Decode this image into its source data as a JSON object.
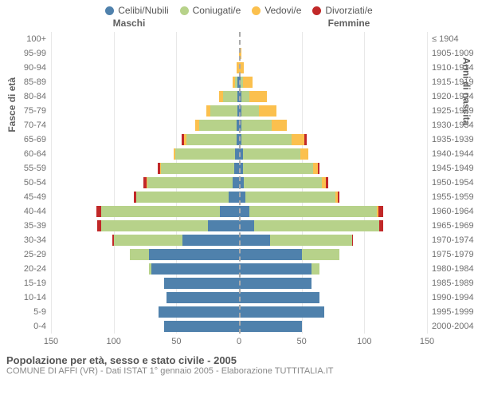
{
  "chart": {
    "type": "population-pyramid",
    "colors": {
      "celibi": "#4f81ac",
      "coniugati": "#b7d28a",
      "vedovi": "#fbc04e",
      "divorziati": "#c12828",
      "grid": "#e8e8e8",
      "center": "#aaaaaa",
      "text": "#707070",
      "bg": "#ffffff"
    },
    "legend": [
      {
        "key": "celibi",
        "label": "Celibi/Nubili"
      },
      {
        "key": "coniugati",
        "label": "Coniugati/e"
      },
      {
        "key": "vedovi",
        "label": "Vedovi/e"
      },
      {
        "key": "divorziati",
        "label": "Divorziati/e"
      }
    ],
    "header_m": "Maschi",
    "header_f": "Femmine",
    "y_title_left": "Fasce di età",
    "y_title_right": "Anni di nascita",
    "x_axis": {
      "min": -150,
      "max": 150,
      "ticks": [
        -150,
        -100,
        -50,
        0,
        50,
        100,
        150
      ],
      "tick_labels": [
        "150",
        "100",
        "50",
        "0",
        "50",
        "100",
        "150"
      ]
    },
    "rows": [
      {
        "age": "100+",
        "birth": "≤ 1904",
        "m": {
          "c": 0,
          "con": 0,
          "v": 0,
          "d": 0
        },
        "f": {
          "c": 0,
          "con": 0,
          "v": 0,
          "d": 0
        }
      },
      {
        "age": "95-99",
        "birth": "1905-1909",
        "m": {
          "c": 0,
          "con": 0,
          "v": 0,
          "d": 0
        },
        "f": {
          "c": 0,
          "con": 0,
          "v": 2,
          "d": 0
        }
      },
      {
        "age": "90-94",
        "birth": "1910-1914",
        "m": {
          "c": 0,
          "con": 0,
          "v": 2,
          "d": 0
        },
        "f": {
          "c": 0,
          "con": 0,
          "v": 4,
          "d": 0
        }
      },
      {
        "age": "85-89",
        "birth": "1915-1919",
        "m": {
          "c": 1,
          "con": 2,
          "v": 2,
          "d": 0
        },
        "f": {
          "c": 1,
          "con": 2,
          "v": 8,
          "d": 0
        }
      },
      {
        "age": "80-84",
        "birth": "1920-1924",
        "m": {
          "c": 1,
          "con": 12,
          "v": 3,
          "d": 0
        },
        "f": {
          "c": 2,
          "con": 6,
          "v": 14,
          "d": 0
        }
      },
      {
        "age": "75-79",
        "birth": "1925-1929",
        "m": {
          "c": 1,
          "con": 22,
          "v": 3,
          "d": 0
        },
        "f": {
          "c": 2,
          "con": 14,
          "v": 14,
          "d": 0
        }
      },
      {
        "age": "70-74",
        "birth": "1930-1934",
        "m": {
          "c": 2,
          "con": 30,
          "v": 3,
          "d": 0
        },
        "f": {
          "c": 2,
          "con": 24,
          "v": 12,
          "d": 0
        }
      },
      {
        "age": "65-69",
        "birth": "1935-1939",
        "m": {
          "c": 2,
          "con": 40,
          "v": 2,
          "d": 2
        },
        "f": {
          "c": 2,
          "con": 40,
          "v": 10,
          "d": 2
        }
      },
      {
        "age": "60-64",
        "birth": "1940-1944",
        "m": {
          "c": 3,
          "con": 48,
          "v": 1,
          "d": 0
        },
        "f": {
          "c": 3,
          "con": 46,
          "v": 6,
          "d": 0
        }
      },
      {
        "age": "55-59",
        "birth": "1945-1949",
        "m": {
          "c": 4,
          "con": 58,
          "v": 1,
          "d": 2
        },
        "f": {
          "c": 3,
          "con": 56,
          "v": 4,
          "d": 1
        }
      },
      {
        "age": "50-54",
        "birth": "1950-1954",
        "m": {
          "c": 5,
          "con": 68,
          "v": 1,
          "d": 2
        },
        "f": {
          "c": 4,
          "con": 62,
          "v": 3,
          "d": 2
        }
      },
      {
        "age": "45-49",
        "birth": "1955-1959",
        "m": {
          "c": 8,
          "con": 74,
          "v": 0,
          "d": 2
        },
        "f": {
          "c": 5,
          "con": 72,
          "v": 2,
          "d": 1
        }
      },
      {
        "age": "40-44",
        "birth": "1960-1964",
        "m": {
          "c": 15,
          "con": 95,
          "v": 0,
          "d": 4
        },
        "f": {
          "c": 8,
          "con": 102,
          "v": 1,
          "d": 4
        }
      },
      {
        "age": "35-39",
        "birth": "1965-1969",
        "m": {
          "c": 25,
          "con": 85,
          "v": 0,
          "d": 3
        },
        "f": {
          "c": 12,
          "con": 100,
          "v": 0,
          "d": 3
        }
      },
      {
        "age": "30-34",
        "birth": "1970-1974",
        "m": {
          "c": 45,
          "con": 55,
          "v": 0,
          "d": 1
        },
        "f": {
          "c": 25,
          "con": 65,
          "v": 0,
          "d": 1
        }
      },
      {
        "age": "25-29",
        "birth": "1975-1979",
        "m": {
          "c": 72,
          "con": 15,
          "v": 0,
          "d": 0
        },
        "f": {
          "c": 50,
          "con": 30,
          "v": 0,
          "d": 0
        }
      },
      {
        "age": "20-24",
        "birth": "1980-1984",
        "m": {
          "c": 70,
          "con": 2,
          "v": 0,
          "d": 0
        },
        "f": {
          "c": 58,
          "con": 6,
          "v": 0,
          "d": 0
        }
      },
      {
        "age": "15-19",
        "birth": "1985-1989",
        "m": {
          "c": 60,
          "con": 0,
          "v": 0,
          "d": 0
        },
        "f": {
          "c": 58,
          "con": 0,
          "v": 0,
          "d": 0
        }
      },
      {
        "age": "10-14",
        "birth": "1990-1994",
        "m": {
          "c": 58,
          "con": 0,
          "v": 0,
          "d": 0
        },
        "f": {
          "c": 64,
          "con": 0,
          "v": 0,
          "d": 0
        }
      },
      {
        "age": "5-9",
        "birth": "1995-1999",
        "m": {
          "c": 64,
          "con": 0,
          "v": 0,
          "d": 0
        },
        "f": {
          "c": 68,
          "con": 0,
          "v": 0,
          "d": 0
        }
      },
      {
        "age": "0-4",
        "birth": "2000-2004",
        "m": {
          "c": 60,
          "con": 0,
          "v": 0,
          "d": 0
        },
        "f": {
          "c": 50,
          "con": 0,
          "v": 0,
          "d": 0
        }
      }
    ],
    "title": "Popolazione per età, sesso e stato civile - 2005",
    "subtitle": "COMUNE DI AFFI (VR) - Dati ISTAT 1° gennaio 2005 - Elaborazione TUTTITALIA.IT"
  }
}
